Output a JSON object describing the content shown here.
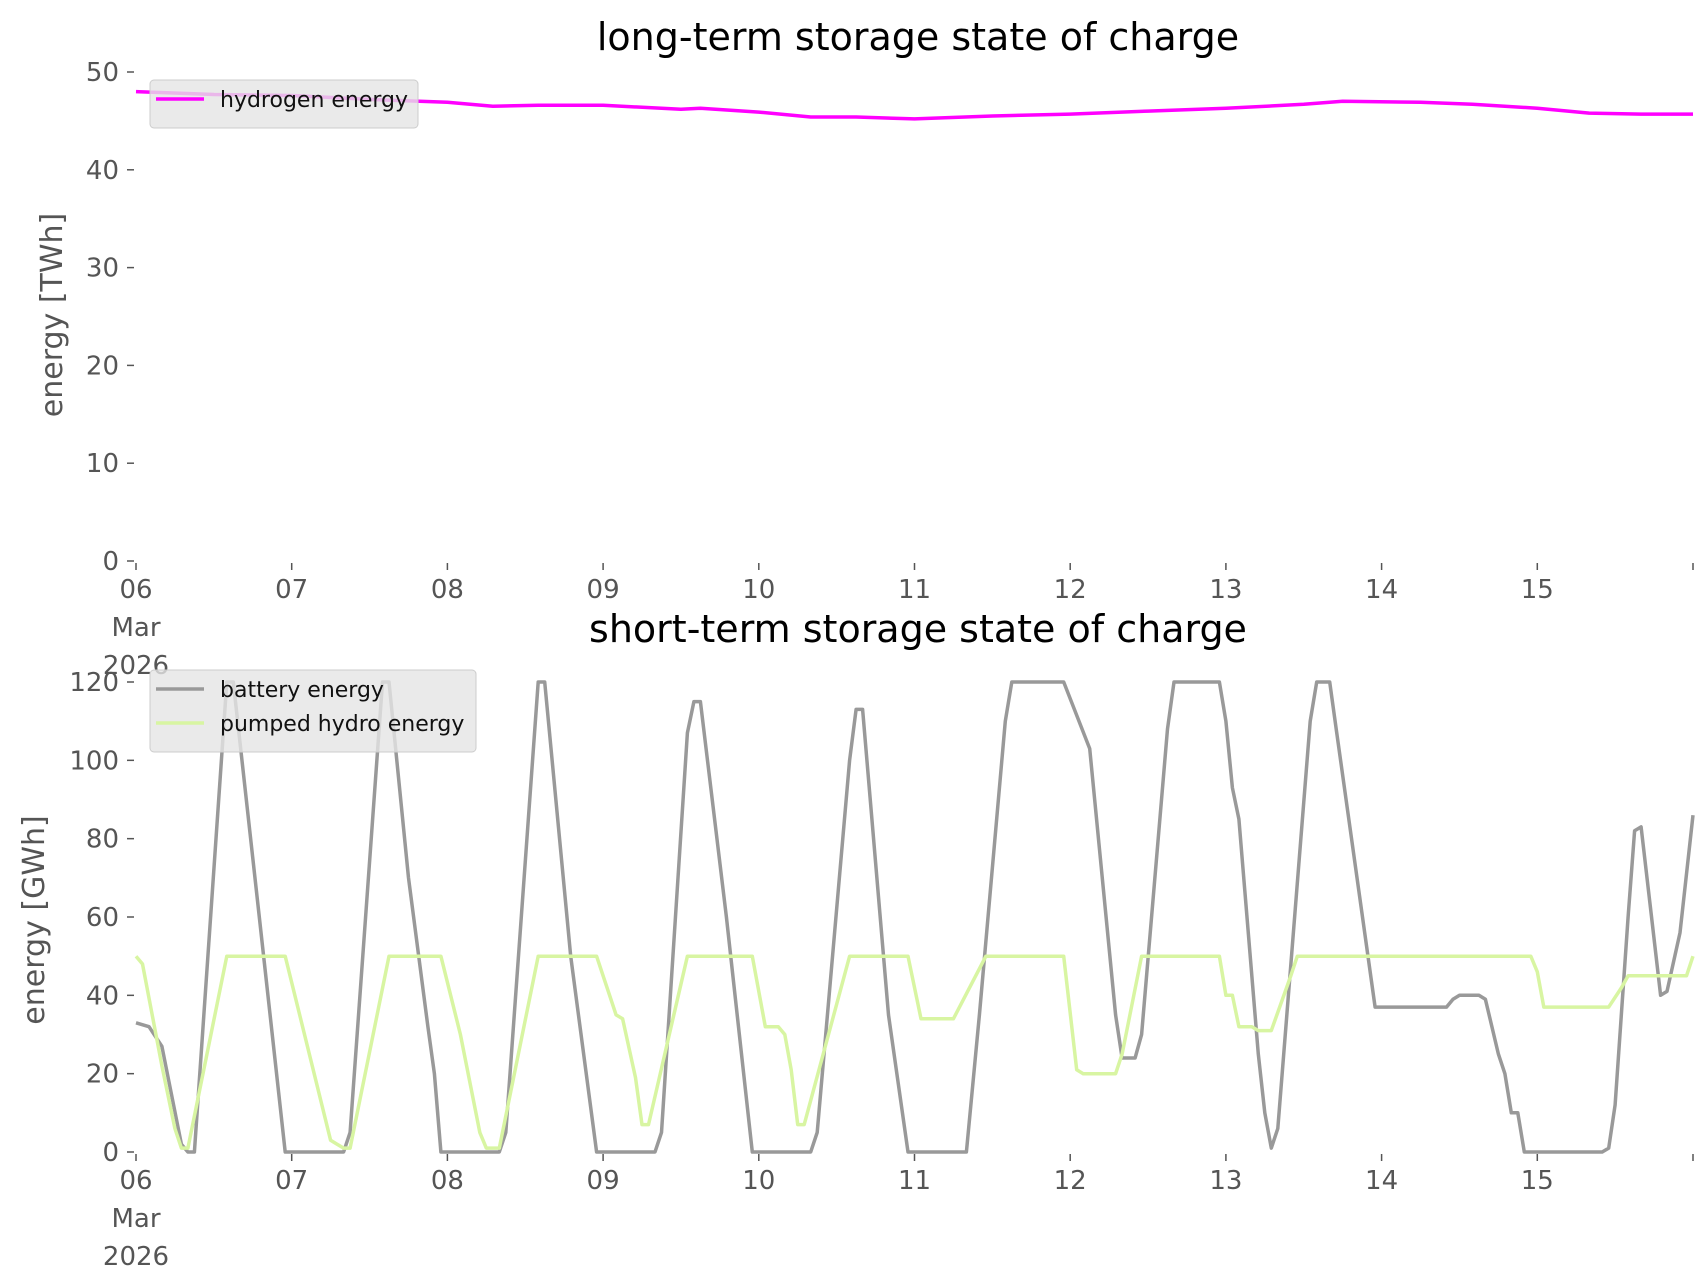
{
  "chart_data": [
    {
      "type": "line",
      "title": "long-term storage state of charge",
      "ylabel": "energy [TWh]",
      "xlabel": "",
      "x_range_days": [
        "2026-03-06",
        "2026-03-16"
      ],
      "ylim": [
        0,
        50
      ],
      "yticks": [
        0,
        10,
        20,
        30,
        40,
        50
      ],
      "xtick_labels": [
        [
          "06",
          "Mar",
          "2026"
        ],
        [
          "07"
        ],
        [
          "08"
        ],
        [
          "09"
        ],
        [
          "10"
        ],
        [
          "11"
        ],
        [
          "12"
        ],
        [
          "13"
        ],
        [
          "14"
        ],
        [
          "15"
        ]
      ],
      "grid": false,
      "legend_position": "upper-left",
      "series": [
        {
          "name": "hydrogen energy",
          "color": "#ff00ff",
          "points": [
            [
              "2026-03-06 00:00",
              48.0
            ],
            [
              "2026-03-06 12:00",
              47.7
            ],
            [
              "2026-03-07 00:00",
              47.6
            ],
            [
              "2026-03-07 12:00",
              47.2
            ],
            [
              "2026-03-08 00:00",
              46.9
            ],
            [
              "2026-03-08 07:00",
              46.5
            ],
            [
              "2026-03-08 14:00",
              46.6
            ],
            [
              "2026-03-09 00:00",
              46.6
            ],
            [
              "2026-03-09 12:00",
              46.2
            ],
            [
              "2026-03-09 15:00",
              46.3
            ],
            [
              "2026-03-10 00:00",
              45.9
            ],
            [
              "2026-03-10 08:00",
              45.4
            ],
            [
              "2026-03-10 15:00",
              45.4
            ],
            [
              "2026-03-11 00:00",
              45.2
            ],
            [
              "2026-03-11 12:00",
              45.5
            ],
            [
              "2026-03-12 00:00",
              45.7
            ],
            [
              "2026-03-12 12:00",
              46.0
            ],
            [
              "2026-03-13 00:00",
              46.3
            ],
            [
              "2026-03-13 12:00",
              46.7
            ],
            [
              "2026-03-13 18:00",
              47.0
            ],
            [
              "2026-03-14 06:00",
              46.9
            ],
            [
              "2026-03-14 14:00",
              46.7
            ],
            [
              "2026-03-15 00:00",
              46.3
            ],
            [
              "2026-03-15 08:00",
              45.8
            ],
            [
              "2026-03-15 16:00",
              45.7
            ],
            [
              "2026-03-16 00:00",
              45.7
            ]
          ]
        }
      ]
    },
    {
      "type": "line",
      "title": "short-term storage state of charge",
      "ylabel": "energy [GWh]",
      "xlabel": "",
      "x_range_days": [
        "2026-03-06",
        "2026-03-16"
      ],
      "ylim": [
        0,
        120
      ],
      "yticks": [
        0,
        20,
        40,
        60,
        80,
        100,
        120
      ],
      "xtick_labels": [
        [
          "06",
          "Mar",
          "2026"
        ],
        [
          "07"
        ],
        [
          "08"
        ],
        [
          "09"
        ],
        [
          "10"
        ],
        [
          "11"
        ],
        [
          "12"
        ],
        [
          "13"
        ],
        [
          "14"
        ],
        [
          "15"
        ]
      ],
      "grid": false,
      "legend_position": "upper-left",
      "series": [
        {
          "name": "battery energy",
          "color": "#999999",
          "points": [
            [
              "2026-03-06 00:00",
              33
            ],
            [
              "2026-03-06 02:00",
              32
            ],
            [
              "2026-03-06 04:00",
              27
            ],
            [
              "2026-03-06 07:00",
              2
            ],
            [
              "2026-03-06 08:00",
              0
            ],
            [
              "2026-03-06 09:00",
              0
            ],
            [
              "2026-03-06 14:00",
              120
            ],
            [
              "2026-03-06 15:00",
              120
            ],
            [
              "2026-03-06 19:00",
              60
            ],
            [
              "2026-03-06 23:00",
              0
            ],
            [
              "2026-03-07 08:00",
              0
            ],
            [
              "2026-03-07 09:00",
              5
            ],
            [
              "2026-03-07 14:00",
              120
            ],
            [
              "2026-03-07 15:00",
              120
            ],
            [
              "2026-03-07 18:00",
              70
            ],
            [
              "2026-03-07 21:00",
              32
            ],
            [
              "2026-03-07 22:00",
              20
            ],
            [
              "2026-03-07 23:00",
              0
            ],
            [
              "2026-03-08 08:00",
              0
            ],
            [
              "2026-03-08 09:00",
              5
            ],
            [
              "2026-03-08 14:00",
              120
            ],
            [
              "2026-03-08 15:00",
              120
            ],
            [
              "2026-03-08 19:00",
              50
            ],
            [
              "2026-03-08 23:00",
              0
            ],
            [
              "2026-03-09 08:00",
              0
            ],
            [
              "2026-03-09 09:00",
              5
            ],
            [
              "2026-03-09 13:00",
              107
            ],
            [
              "2026-03-09 14:00",
              115
            ],
            [
              "2026-03-09 15:00",
              115
            ],
            [
              "2026-03-09 19:00",
              60
            ],
            [
              "2026-03-09 23:00",
              0
            ],
            [
              "2026-03-10 08:00",
              0
            ],
            [
              "2026-03-10 09:00",
              5
            ],
            [
              "2026-03-10 14:00",
              100
            ],
            [
              "2026-03-10 15:00",
              113
            ],
            [
              "2026-03-10 16:00",
              113
            ],
            [
              "2026-03-10 20:00",
              35
            ],
            [
              "2026-03-10 23:00",
              0
            ],
            [
              "2026-03-11 08:00",
              0
            ],
            [
              "2026-03-11 10:00",
              35
            ],
            [
              "2026-03-11 14:00",
              110
            ],
            [
              "2026-03-11 15:00",
              120
            ],
            [
              "2026-03-11 23:00",
              120
            ],
            [
              "2026-03-12 03:00",
              103
            ],
            [
              "2026-03-12 07:00",
              35
            ],
            [
              "2026-03-12 08:00",
              24
            ],
            [
              "2026-03-12 10:00",
              24
            ],
            [
              "2026-03-12 11:00",
              30
            ],
            [
              "2026-03-12 15:00",
              108
            ],
            [
              "2026-03-12 16:00",
              120
            ],
            [
              "2026-03-12 23:00",
              120
            ],
            [
              "2026-03-13 00:00",
              110
            ],
            [
              "2026-03-13 01:00",
              93
            ],
            [
              "2026-03-13 02:00",
              85
            ],
            [
              "2026-03-13 05:00",
              25
            ],
            [
              "2026-03-13 06:00",
              10
            ],
            [
              "2026-03-13 07:00",
              1
            ],
            [
              "2026-03-13 08:00",
              6
            ],
            [
              "2026-03-13 13:00",
              110
            ],
            [
              "2026-03-13 14:00",
              120
            ],
            [
              "2026-03-13 16:00",
              120
            ],
            [
              "2026-03-13 17:00",
              108
            ],
            [
              "2026-03-13 23:00",
              37
            ],
            [
              "2026-03-14 10:00",
              37
            ],
            [
              "2026-03-14 11:00",
              39
            ],
            [
              "2026-03-14 12:00",
              40
            ],
            [
              "2026-03-14 15:00",
              40
            ],
            [
              "2026-03-14 16:00",
              39
            ],
            [
              "2026-03-14 18:00",
              25
            ],
            [
              "2026-03-14 19:00",
              20
            ],
            [
              "2026-03-14 20:00",
              10
            ],
            [
              "2026-03-14 21:00",
              10
            ],
            [
              "2026-03-14 22:00",
              0
            ],
            [
              "2026-03-15 10:00",
              0
            ],
            [
              "2026-03-15 11:00",
              1
            ],
            [
              "2026-03-15 12:00",
              12
            ],
            [
              "2026-03-15 14:00",
              60
            ],
            [
              "2026-03-15 15:00",
              82
            ],
            [
              "2026-03-15 16:00",
              83
            ],
            [
              "2026-03-15 19:00",
              40
            ],
            [
              "2026-03-15 20:00",
              41
            ],
            [
              "2026-03-15 22:00",
              56
            ],
            [
              "2026-03-16 00:00",
              86
            ]
          ]
        },
        {
          "name": "pumped hydro energy",
          "color": "#d8f5a2",
          "points": [
            [
              "2026-03-06 00:00",
              50
            ],
            [
              "2026-03-06 01:00",
              48
            ],
            [
              "2026-03-06 04:00",
              22
            ],
            [
              "2026-03-06 06:00",
              6
            ],
            [
              "2026-03-06 07:00",
              1
            ],
            [
              "2026-03-06 08:00",
              1
            ],
            [
              "2026-03-06 14:00",
              50
            ],
            [
              "2026-03-06 23:00",
              50
            ],
            [
              "2026-03-07 06:00",
              3
            ],
            [
              "2026-03-07 07:00",
              2
            ],
            [
              "2026-03-07 08:00",
              1
            ],
            [
              "2026-03-07 09:00",
              1
            ],
            [
              "2026-03-07 15:00",
              50
            ],
            [
              "2026-03-07 23:00",
              50
            ],
            [
              "2026-03-08 02:00",
              30
            ],
            [
              "2026-03-08 05:00",
              5
            ],
            [
              "2026-03-08 06:00",
              1
            ],
            [
              "2026-03-08 08:00",
              1
            ],
            [
              "2026-03-08 14:00",
              50
            ],
            [
              "2026-03-08 23:00",
              50
            ],
            [
              "2026-03-09 00:00",
              45
            ],
            [
              "2026-03-09 01:00",
              40
            ],
            [
              "2026-03-09 02:00",
              35
            ],
            [
              "2026-03-09 03:00",
              34
            ],
            [
              "2026-03-09 05:00",
              19
            ],
            [
              "2026-03-09 06:00",
              7
            ],
            [
              "2026-03-09 07:00",
              7
            ],
            [
              "2026-03-09 13:00",
              50
            ],
            [
              "2026-03-09 23:00",
              50
            ],
            [
              "2026-03-10 01:00",
              32
            ],
            [
              "2026-03-10 03:00",
              32
            ],
            [
              "2026-03-10 04:00",
              30
            ],
            [
              "2026-03-10 05:00",
              21
            ],
            [
              "2026-03-10 06:00",
              7
            ],
            [
              "2026-03-10 07:00",
              7
            ],
            [
              "2026-03-10 14:00",
              50
            ],
            [
              "2026-03-10 23:00",
              50
            ],
            [
              "2026-03-11 01:00",
              34
            ],
            [
              "2026-03-11 05:00",
              34
            ],
            [
              "2026-03-11 06:00",
              34
            ],
            [
              "2026-03-11 11:00",
              50
            ],
            [
              "2026-03-11 23:00",
              50
            ],
            [
              "2026-03-12 01:00",
              21
            ],
            [
              "2026-03-12 02:00",
              20
            ],
            [
              "2026-03-12 07:00",
              20
            ],
            [
              "2026-03-12 08:00",
              25
            ],
            [
              "2026-03-12 11:00",
              50
            ],
            [
              "2026-03-12 23:00",
              50
            ],
            [
              "2026-03-13 00:00",
              40
            ],
            [
              "2026-03-13 01:00",
              40
            ],
            [
              "2026-03-13 02:00",
              32
            ],
            [
              "2026-03-13 04:00",
              32
            ],
            [
              "2026-03-13 05:00",
              31
            ],
            [
              "2026-03-13 07:00",
              31
            ],
            [
              "2026-03-13 10:00",
              45
            ],
            [
              "2026-03-13 11:00",
              50
            ],
            [
              "2026-03-14 23:00",
              50
            ],
            [
              "2026-03-15 00:00",
              46
            ],
            [
              "2026-03-15 01:00",
              37
            ],
            [
              "2026-03-15 11:00",
              37
            ],
            [
              "2026-03-15 13:00",
              42
            ],
            [
              "2026-03-15 14:00",
              45
            ],
            [
              "2026-03-15 23:00",
              45
            ],
            [
              "2026-03-16 00:00",
              50
            ]
          ]
        }
      ]
    }
  ]
}
